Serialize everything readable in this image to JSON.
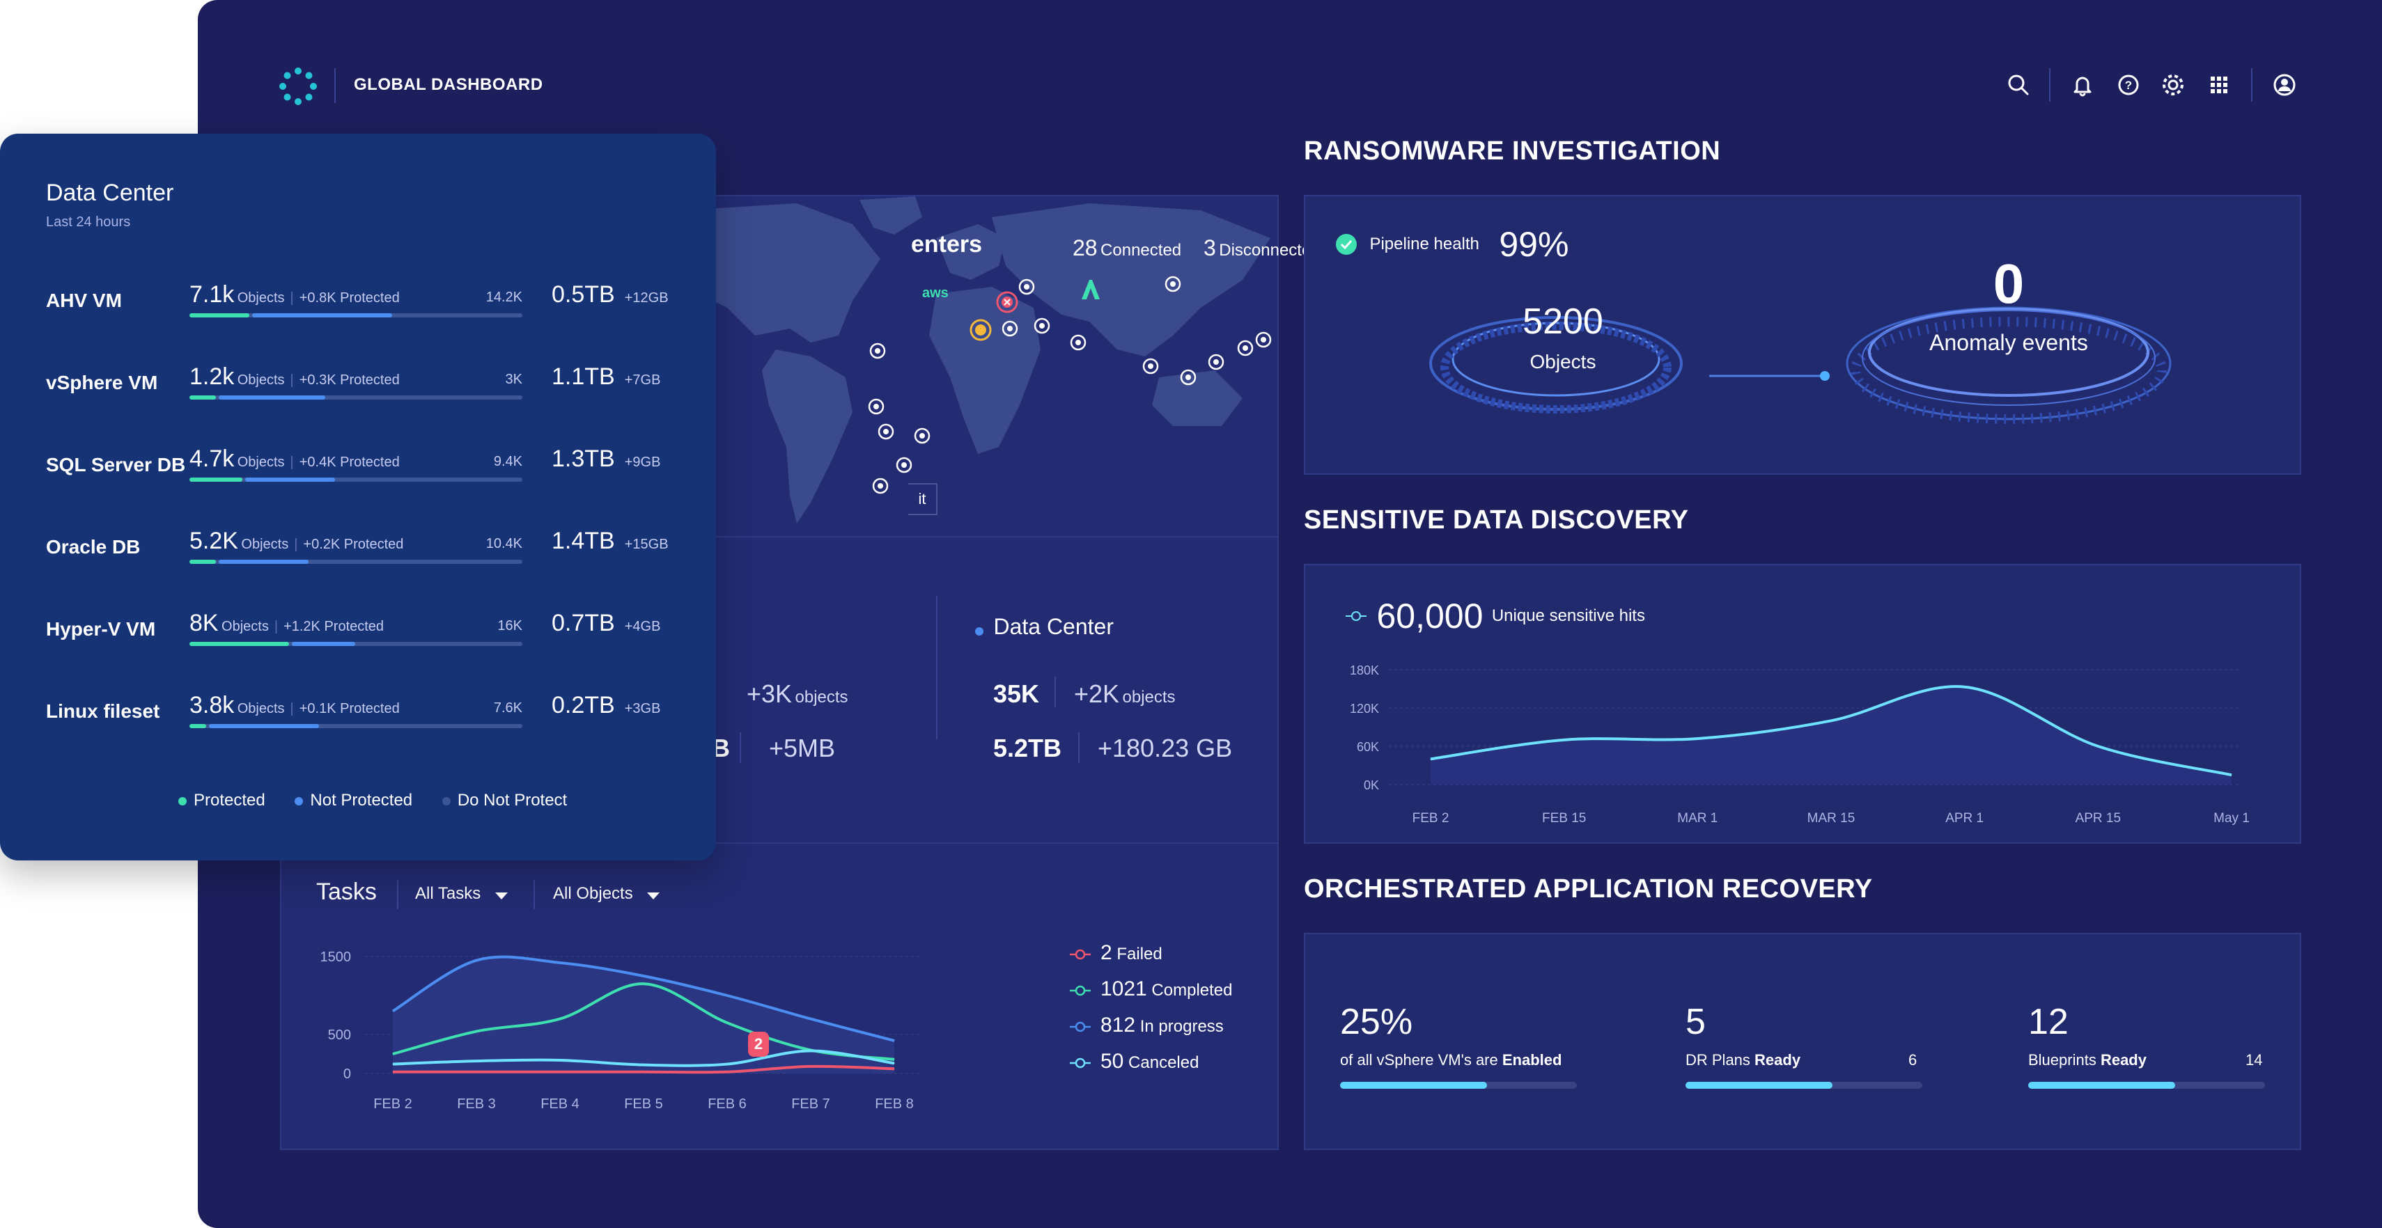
{
  "header": {
    "title": "GLOBAL DASHBOARD",
    "icons": [
      "logo-icon",
      "search-icon",
      "bell-icon",
      "help-icon",
      "gear-icon",
      "apps-grid-icon",
      "user-icon"
    ]
  },
  "data_center_card": {
    "title": "Data Center",
    "subtitle": "Last 24 hours",
    "rows": [
      {
        "name": "AHV VM",
        "count": "7.1k",
        "objects_label": "Objects",
        "protected_delta": "+0.8K Protected",
        "total": "14.2K",
        "size": "0.5TB",
        "size_delta": "+12GB",
        "protected_frac": 0.18,
        "not_protected_frac": 0.42
      },
      {
        "name": "vSphere VM",
        "count": "1.2k",
        "objects_label": "Objects",
        "protected_delta": "+0.3K Protected",
        "total": "3K",
        "size": "1.1TB",
        "size_delta": "+7GB",
        "protected_frac": 0.08,
        "not_protected_frac": 0.32
      },
      {
        "name": "SQL Server DB",
        "count": "4.7k",
        "objects_label": "Objects",
        "protected_delta": "+0.4K Protected",
        "total": "9.4K",
        "size": "1.3TB",
        "size_delta": "+9GB",
        "protected_frac": 0.16,
        "not_protected_frac": 0.27
      },
      {
        "name": "Oracle DB",
        "count": "5.2K",
        "objects_label": "Objects",
        "protected_delta": "+0.2K Protected",
        "total": "10.4K",
        "size": "1.4TB",
        "size_delta": "+15GB",
        "protected_frac": 0.08,
        "not_protected_frac": 0.27
      },
      {
        "name": "Hyper-V VM",
        "count": "8K",
        "objects_label": "Objects",
        "protected_delta": "+1.2K Protected",
        "total": "16K",
        "size": "0.7TB",
        "size_delta": "+4GB",
        "protected_frac": 0.3,
        "not_protected_frac": 0.19
      },
      {
        "name": "Linux fileset",
        "count": "3.8k",
        "objects_label": "Objects",
        "protected_delta": "+0.1K Protected",
        "total": "7.6K",
        "size": "0.2TB",
        "size_delta": "+3GB",
        "protected_frac": 0.05,
        "not_protected_frac": 0.33
      }
    ],
    "legend": [
      "Protected",
      "Not Protected",
      "Do Not Protect"
    ],
    "colors": {
      "protected": "#3fe0b0",
      "not_protected": "#4b8df0",
      "do_not_protect": "#3c5595"
    }
  },
  "map": {
    "title_partial": "enters",
    "connected_count": "28",
    "connected_label": "Connected",
    "disconnected_count": "3",
    "disconnected_label": "Disconnected",
    "aws_label": "aws",
    "button_partial": "it"
  },
  "summary": {
    "left_objects_delta": "+3K",
    "left_objects_label": "objects",
    "left_size_partial": "B",
    "left_size_delta": "+5MB",
    "dc_title": "Data Center",
    "dc_objects": "35K",
    "dc_objects_delta": "+2K",
    "dc_objects_label": "objects",
    "dc_size": "5.2TB",
    "dc_size_delta": "+180.23 GB"
  },
  "tasks": {
    "title": "Tasks",
    "filter_tasks": "All Tasks",
    "filter_objects": "All Objects",
    "badge": "2",
    "legend": [
      {
        "count": "2",
        "label": "Failed",
        "color": "#f0566e"
      },
      {
        "count": "1021",
        "label": "Completed",
        "color": "#3fe0b0"
      },
      {
        "count": "812",
        "label": "In progress",
        "color": "#4b8df0"
      },
      {
        "count": "50",
        "label": "Canceled",
        "color": "#6fe2ff"
      }
    ]
  },
  "ransomware": {
    "title": "RANSOMWARE INVESTIGATION",
    "pipeline_label": "Pipeline health",
    "pipeline_value": "99%",
    "objects_value": "5200",
    "objects_label": "Objects",
    "anomaly_value": "0",
    "anomaly_label": "Anomaly events"
  },
  "sensitive": {
    "title": "SENSITIVE DATA DISCOVERY",
    "hits_value": "60,000",
    "hits_label": "Unique sensitive hits"
  },
  "recovery": {
    "title": "ORCHESTRATED APPLICATION RECOVERY",
    "items": [
      {
        "value": "25%",
        "label_prefix": "of all vSphere VM's are ",
        "label_bold": "Enabled",
        "total": "",
        "fraction": 0.62
      },
      {
        "value": "5",
        "label_prefix": "DR Plans ",
        "label_bold": "Ready",
        "total": "6",
        "fraction": 0.62
      },
      {
        "value": "12",
        "label_prefix": "Blueprints ",
        "label_bold": "Ready",
        "total": "14",
        "fraction": 0.62
      }
    ]
  },
  "chart_data": [
    {
      "type": "line",
      "title": "Tasks",
      "categories": [
        "FEB 2",
        "FEB 3",
        "FEB 4",
        "FEB 5",
        "FEB 6",
        "FEB 7",
        "FEB 8"
      ],
      "ylim": [
        0,
        1500
      ],
      "yticks": [
        "1500",
        "500",
        "0"
      ],
      "series": [
        {
          "name": "In progress",
          "color": "#4b8df0",
          "values": [
            800,
            1450,
            1420,
            1250,
            1000,
            700,
            420
          ]
        },
        {
          "name": "Completed",
          "color": "#3fe0b0",
          "values": [
            250,
            540,
            700,
            1150,
            650,
            300,
            180
          ]
        },
        {
          "name": "Canceled",
          "color": "#6fe2ff",
          "values": [
            120,
            160,
            170,
            110,
            120,
            290,
            130
          ]
        },
        {
          "name": "Failed",
          "color": "#f0566e",
          "values": [
            20,
            20,
            20,
            20,
            20,
            90,
            60
          ]
        }
      ]
    },
    {
      "type": "line",
      "title": "Unique sensitive hits",
      "categories": [
        "FEB 2",
        "FEB 15",
        "MAR 1",
        "MAR 15",
        "APR 1",
        "APR 15",
        "May 1"
      ],
      "ylim": [
        0,
        180000
      ],
      "yticks": [
        "180K",
        "120K",
        "60K",
        "0K"
      ],
      "series": [
        {
          "name": "Sensitive hits",
          "color": "#6fe2ff",
          "values": [
            40000,
            70000,
            72000,
            100000,
            153000,
            60000,
            15000
          ]
        }
      ]
    }
  ]
}
